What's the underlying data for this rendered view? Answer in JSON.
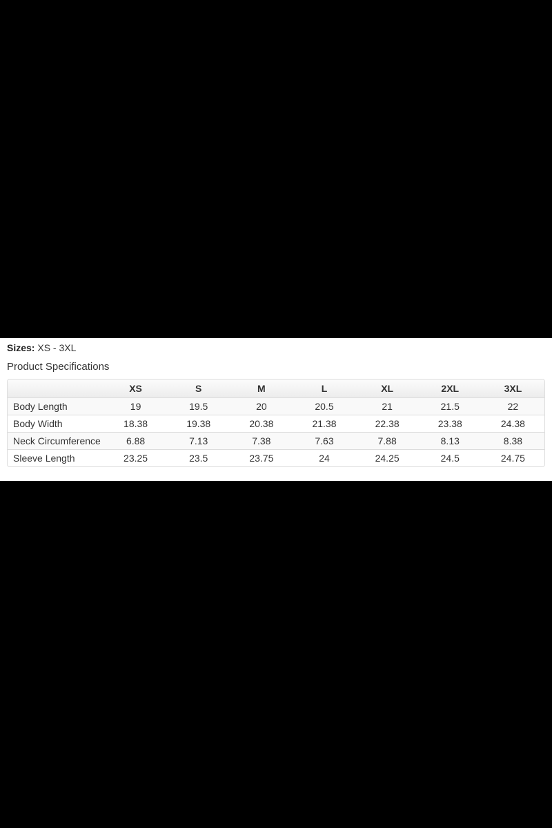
{
  "page": {
    "background_color": "#000000",
    "band_background_color": "#ffffff"
  },
  "sizes_line": {
    "label": "Sizes:",
    "value": " XS - 3XL"
  },
  "section_title": "Product Specifications",
  "table": {
    "columns": [
      "",
      "XS",
      "S",
      "M",
      "L",
      "XL",
      "2XL",
      "3XL"
    ],
    "rows": [
      {
        "label": "Body Length",
        "values": [
          "19",
          "19.5",
          "20",
          "20.5",
          "21",
          "21.5",
          "22"
        ]
      },
      {
        "label": "Body Width",
        "values": [
          "18.38",
          "19.38",
          "20.38",
          "21.38",
          "22.38",
          "23.38",
          "24.38"
        ]
      },
      {
        "label": "Neck Circumference",
        "values": [
          "6.88",
          "7.13",
          "7.38",
          "7.63",
          "7.88",
          "8.13",
          "8.38"
        ]
      },
      {
        "label": "Sleeve Length",
        "values": [
          "23.25",
          "23.5",
          "23.75",
          "24",
          "24.25",
          "24.5",
          "24.75"
        ]
      }
    ]
  },
  "colors": {
    "text": "#333333",
    "table_border": "#dddddd",
    "stripe_row": "#f9f9f9",
    "header_gradient_top": "#fcfcfc",
    "header_gradient_bottom": "#ececec"
  }
}
